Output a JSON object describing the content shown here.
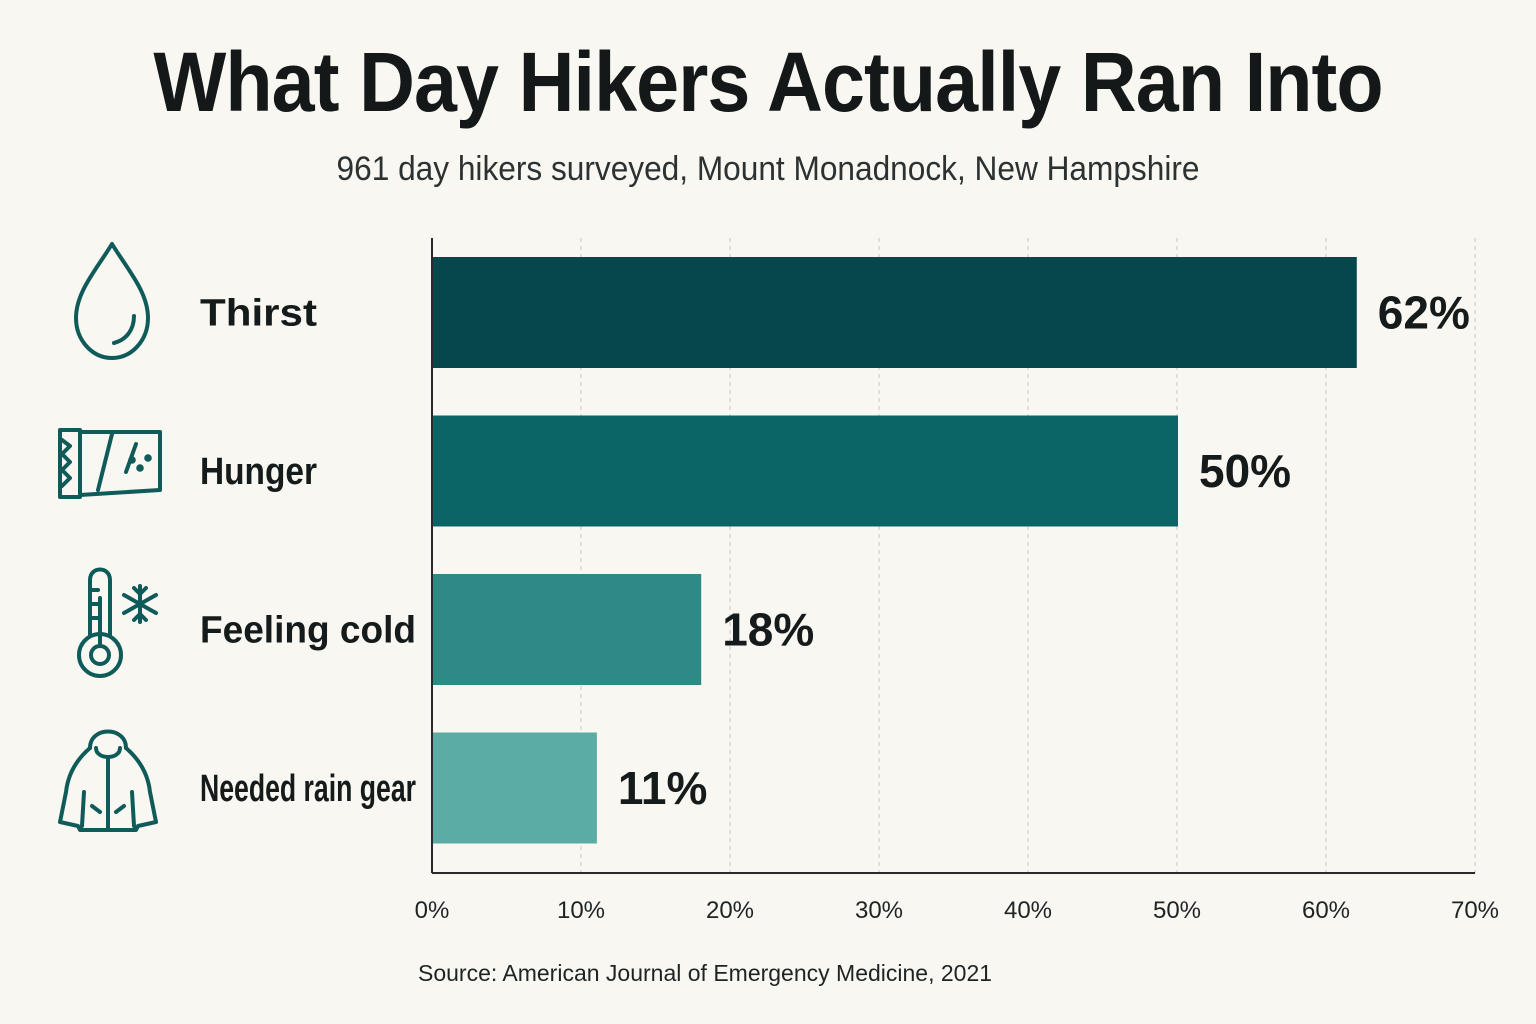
{
  "chart_data": {
    "type": "bar",
    "orientation": "horizontal",
    "title": "What Day Hikers Actually Ran Into",
    "subtitle": "961 day hikers surveyed, Mount Monadnock, New Hampshire",
    "categories": [
      "Thirst",
      "Hunger",
      "Feeling cold",
      "Needed rain gear"
    ],
    "values": [
      62,
      50,
      18,
      11
    ],
    "value_labels": [
      "62%",
      "50%",
      "18%",
      "11%"
    ],
    "icons": [
      "water-drop-icon",
      "food-bar-icon",
      "thermometer-snowflake-icon",
      "rain-jacket-icon"
    ],
    "bar_colors": [
      "#05474a",
      "#0b6466",
      "#2f8a85",
      "#5aaca5"
    ],
    "xlim": [
      0,
      70
    ],
    "x_ticks": [
      "0%",
      "10%",
      "20%",
      "30%",
      "40%",
      "50%",
      "60%",
      "70%"
    ],
    "grid": true,
    "source": "Source: American Journal of Emergency Medicine, 2021"
  }
}
